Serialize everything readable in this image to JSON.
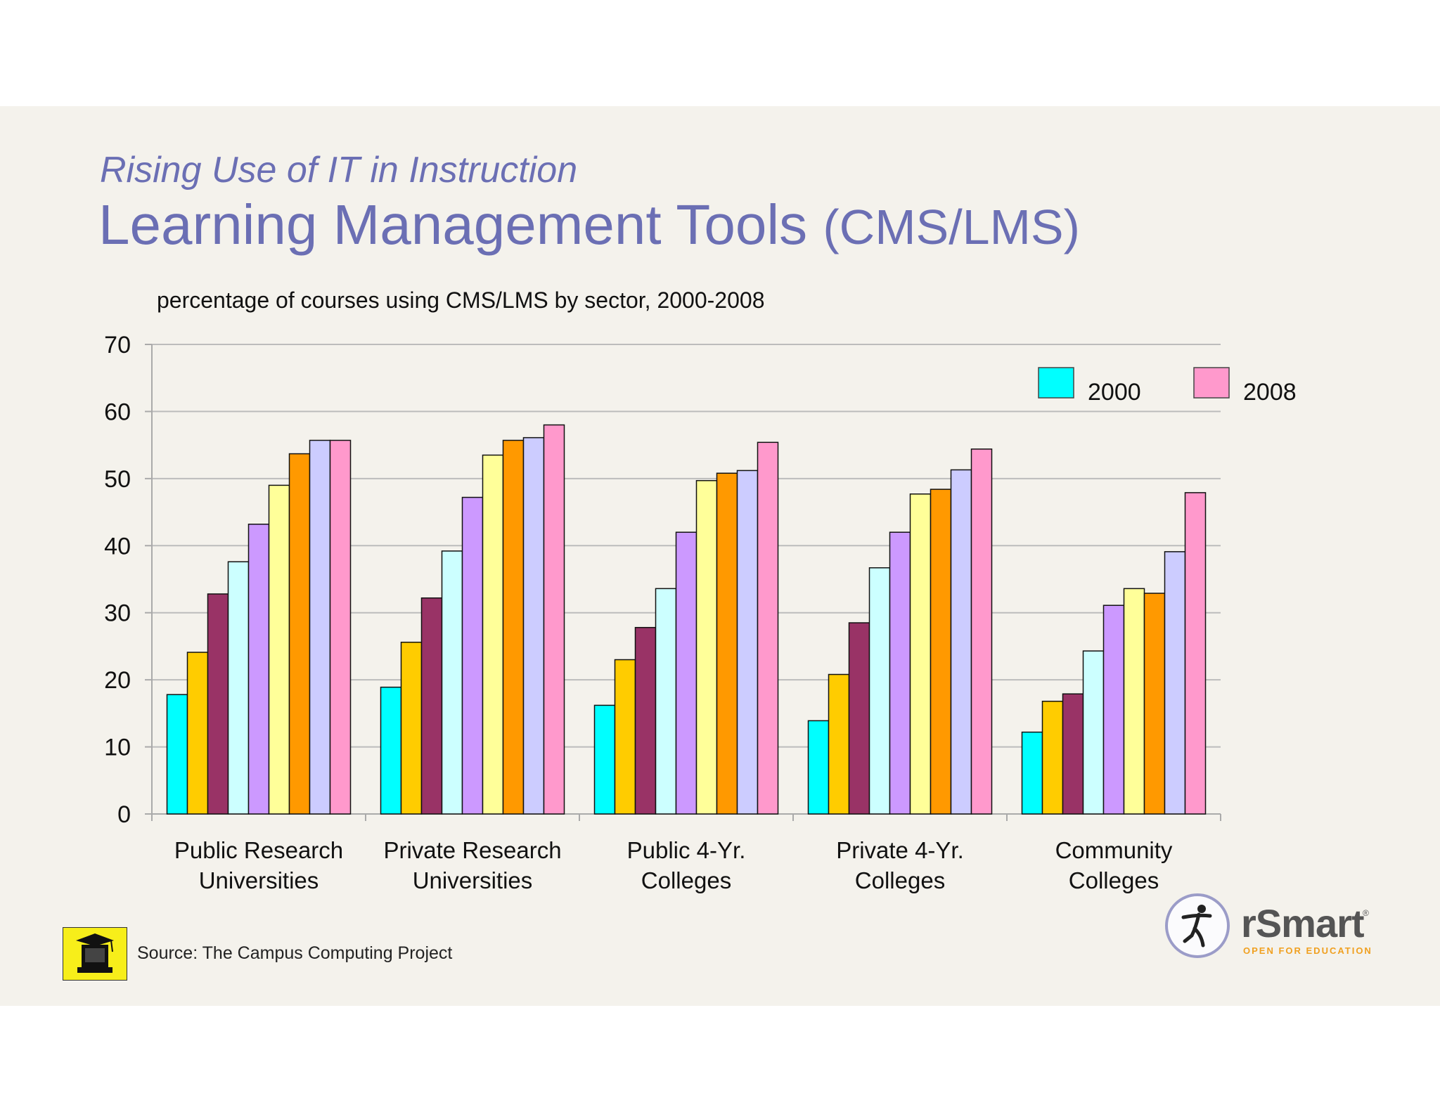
{
  "slide": {
    "subtitle": "Rising Use of IT in Instruction",
    "title_main": "Learning Management Tools",
    "title_paren": "(CMS/LMS)",
    "source": "Source: The Campus Computing Project",
    "logo_name": "rSmart",
    "logo_reg": "®",
    "logo_tagline": "OPEN FOR EDUCATION",
    "source_icon": "graduation-computer-icon",
    "logo_icon": "dancing-figure-icon"
  },
  "chart_data": {
    "type": "bar",
    "title": "percentage of courses using CMS/LMS by sector, 2000-2008",
    "xlabel": "",
    "ylabel": "",
    "ylim": [
      0,
      70
    ],
    "yticks": [
      0,
      10,
      20,
      30,
      40,
      50,
      60,
      70
    ],
    "grid": true,
    "legend_position": "top-right",
    "legend": [
      {
        "label": "2000",
        "color": "#00ffff"
      },
      {
        "label": "2008",
        "color": "#ff99cc"
      }
    ],
    "categories": [
      [
        "Public Research",
        "Universities"
      ],
      [
        "Private Research",
        "Universities"
      ],
      [
        "Public 4-Yr.",
        "Colleges"
      ],
      [
        "Private 4-Yr.",
        "Colleges"
      ],
      [
        "Community",
        "Colleges"
      ]
    ],
    "series": [
      {
        "name": "2000",
        "color": "#00ffff",
        "values": [
          17.8,
          18.9,
          16.2,
          13.9,
          12.2
        ]
      },
      {
        "color": "#ffcc00",
        "values": [
          24.1,
          25.6,
          23.0,
          20.8,
          16.8
        ]
      },
      {
        "color": "#993366",
        "values": [
          32.8,
          32.2,
          27.8,
          28.5,
          17.9
        ]
      },
      {
        "color": "#ccffff",
        "values": [
          37.6,
          39.2,
          33.6,
          36.7,
          24.3
        ]
      },
      {
        "color": "#cc99ff",
        "values": [
          43.2,
          47.2,
          42.0,
          42.0,
          31.1
        ]
      },
      {
        "color": "#ffff99",
        "values": [
          49.0,
          53.5,
          49.7,
          47.7,
          33.6
        ]
      },
      {
        "color": "#ff9900",
        "values": [
          53.7,
          55.7,
          50.8,
          48.4,
          32.9
        ]
      },
      {
        "color": "#ccccff",
        "values": [
          55.7,
          56.1,
          51.2,
          51.3,
          39.1
        ]
      },
      {
        "name": "2008",
        "color": "#ff99cc",
        "values": [
          55.7,
          58.0,
          55.4,
          54.4,
          47.9
        ]
      }
    ]
  }
}
